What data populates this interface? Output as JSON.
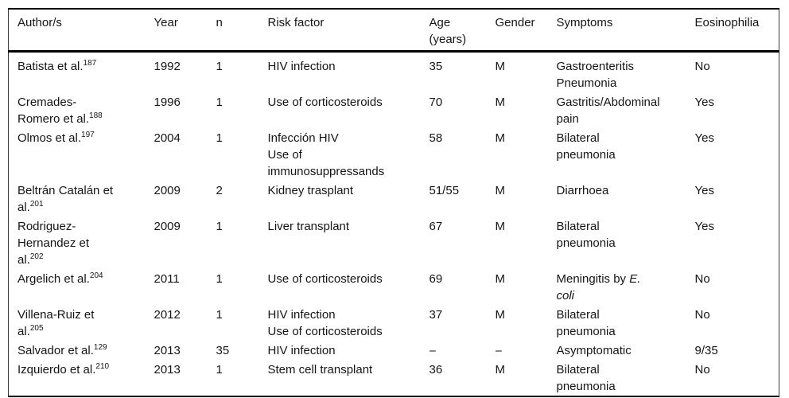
{
  "colors": {
    "text": "#151515",
    "rule": "#000000",
    "background": "#ffffff"
  },
  "table": {
    "headers": [
      {
        "id": "author",
        "lines": [
          "Author/s"
        ]
      },
      {
        "id": "year",
        "lines": [
          "Year"
        ]
      },
      {
        "id": "n",
        "lines": [
          "n"
        ]
      },
      {
        "id": "risk-factor",
        "lines": [
          "Risk factor"
        ]
      },
      {
        "id": "age",
        "lines": [
          "Age",
          "(years)"
        ]
      },
      {
        "id": "gender",
        "lines": [
          "Gender"
        ]
      },
      {
        "id": "symptoms",
        "lines": [
          "Symptoms"
        ]
      },
      {
        "id": "eosinophilia",
        "lines": [
          "Eosinophilia"
        ]
      }
    ],
    "rows": [
      {
        "author": {
          "lines": [
            "Batista et al."
          ],
          "ref": "187"
        },
        "year": "1992",
        "n": "1",
        "risk_factor": [
          "HIV infection"
        ],
        "age": "35",
        "gender": "M",
        "symptoms": [
          [
            {
              "t": "Gastroenteritis"
            }
          ],
          [
            {
              "t": "Pneumonia"
            }
          ]
        ],
        "eosinophilia": "No"
      },
      {
        "author": {
          "lines": [
            "Cremades-",
            "Romero et al."
          ],
          "ref": "188"
        },
        "year": "1996",
        "n": "1",
        "risk_factor": [
          "Use of corticosteroids"
        ],
        "age": "70",
        "gender": "M",
        "symptoms": [
          [
            {
              "t": "Gastritis/Abdominal"
            }
          ],
          [
            {
              "t": "pain"
            }
          ]
        ],
        "eosinophilia": "Yes"
      },
      {
        "author": {
          "lines": [
            "Olmos et al."
          ],
          "ref": "197"
        },
        "year": "2004",
        "n": "1",
        "risk_factor": [
          "Infección HIV",
          "Use of",
          "immunosuppressands"
        ],
        "age": "58",
        "gender": "M",
        "symptoms": [
          [
            {
              "t": "Bilateral"
            }
          ],
          [
            {
              "t": "pneumonia"
            }
          ]
        ],
        "eosinophilia": "Yes"
      },
      {
        "author": {
          "lines": [
            "Beltrán Catalán et",
            "al."
          ],
          "ref": "201"
        },
        "year": "2009",
        "n": "2",
        "risk_factor": [
          "Kidney trasplant"
        ],
        "age": "51/55",
        "gender": "M",
        "symptoms": [
          [
            {
              "t": "Diarrhoea"
            }
          ]
        ],
        "eosinophilia": "Yes"
      },
      {
        "author": {
          "lines": [
            "Rodriguez-",
            "Hernandez et",
            "al."
          ],
          "ref": "202"
        },
        "year": "2009",
        "n": "1",
        "risk_factor": [
          "Liver transplant"
        ],
        "age": "67",
        "gender": "M",
        "symptoms": [
          [
            {
              "t": "Bilateral"
            }
          ],
          [
            {
              "t": "pneumonia"
            }
          ]
        ],
        "eosinophilia": "Yes"
      },
      {
        "author": {
          "lines": [
            "Argelich et al."
          ],
          "ref": "204"
        },
        "year": "2011",
        "n": "1",
        "risk_factor": [
          "Use of corticosteroids"
        ],
        "age": "69",
        "gender": "M",
        "symptoms": [
          [
            {
              "t": "Meningitis by "
            },
            {
              "t": "E.",
              "i": true
            }
          ],
          [
            {
              "t": "coli",
              "i": true
            }
          ]
        ],
        "eosinophilia": "No"
      },
      {
        "author": {
          "lines": [
            "Villena-Ruiz et",
            "al."
          ],
          "ref": "205"
        },
        "year": "2012",
        "n": "1",
        "risk_factor": [
          "HIV infection",
          "Use of corticosteroids"
        ],
        "age": "37",
        "gender": "M",
        "symptoms": [
          [
            {
              "t": "Bilateral"
            }
          ],
          [
            {
              "t": "pneumonia"
            }
          ]
        ],
        "eosinophilia": "No"
      },
      {
        "author": {
          "lines": [
            "Salvador et al."
          ],
          "ref": "129"
        },
        "year": "2013",
        "n": "35",
        "risk_factor": [
          "HIV infection"
        ],
        "age": "–",
        "gender": "–",
        "symptoms": [
          [
            {
              "t": "Asymptomatic"
            }
          ]
        ],
        "eosinophilia": "9/35"
      },
      {
        "author": {
          "lines": [
            "Izquierdo et al."
          ],
          "ref": "210"
        },
        "year": "2013",
        "n": "1",
        "risk_factor": [
          "Stem cell transplant"
        ],
        "age": "36",
        "gender": "M",
        "symptoms": [
          [
            {
              "t": "Bilateral"
            }
          ],
          [
            {
              "t": "pneumonia"
            }
          ]
        ],
        "eosinophilia": "No"
      }
    ]
  }
}
